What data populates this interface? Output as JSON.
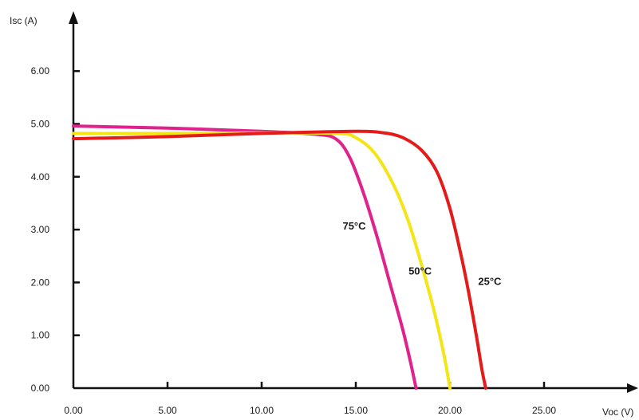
{
  "chart_data": {
    "type": "line",
    "xlabel": "Voc (V)",
    "ylabel": "Isc (A)",
    "xlim": [
      0,
      25
    ],
    "ylim": [
      0,
      6
    ],
    "xticks": [
      "0.00",
      "5.00",
      "10.00",
      "15.00",
      "20.00",
      "25.00"
    ],
    "yticks": [
      "0.00",
      "1.00",
      "2.00",
      "3.00",
      "4.00",
      "5.00",
      "6.00"
    ],
    "grid": false,
    "legend": "none",
    "series": [
      {
        "name": "25°C",
        "color": "#e41b1b",
        "points": [
          [
            0,
            4.72
          ],
          [
            5,
            4.76
          ],
          [
            10,
            4.82
          ],
          [
            15,
            4.86
          ],
          [
            16.5,
            4.83
          ],
          [
            17.5,
            4.74
          ],
          [
            18.5,
            4.5
          ],
          [
            19.3,
            4.1
          ],
          [
            20,
            3.4
          ],
          [
            20.6,
            2.5
          ],
          [
            21,
            1.8
          ],
          [
            21.4,
            1.0
          ],
          [
            21.7,
            0.35
          ],
          [
            21.9,
            0
          ]
        ]
      },
      {
        "name": "50°C",
        "color": "#f3e516",
        "points": [
          [
            0,
            4.82
          ],
          [
            5,
            4.82
          ],
          [
            10,
            4.83
          ],
          [
            14,
            4.82
          ],
          [
            15,
            4.74
          ],
          [
            16,
            4.45
          ],
          [
            17,
            3.85
          ],
          [
            17.8,
            3.15
          ],
          [
            18.6,
            2.2
          ],
          [
            19.2,
            1.4
          ],
          [
            19.7,
            0.6
          ],
          [
            20,
            0
          ]
        ]
      },
      {
        "name": "75°C",
        "color": "#e0228c",
        "points": [
          [
            0,
            4.96
          ],
          [
            5,
            4.92
          ],
          [
            10,
            4.86
          ],
          [
            13,
            4.8
          ],
          [
            14,
            4.7
          ],
          [
            14.7,
            4.35
          ],
          [
            15.4,
            3.7
          ],
          [
            16.1,
            2.9
          ],
          [
            16.8,
            2.0
          ],
          [
            17.5,
            1.1
          ],
          [
            17.9,
            0.5
          ],
          [
            18.2,
            0
          ]
        ]
      }
    ],
    "annotations": [
      {
        "text": "25°C",
        "x": 21.5,
        "y": 1.95
      },
      {
        "text": "50°C",
        "x": 17.8,
        "y": 2.15
      },
      {
        "text": "75°C",
        "x": 14.3,
        "y": 3.0
      }
    ]
  }
}
